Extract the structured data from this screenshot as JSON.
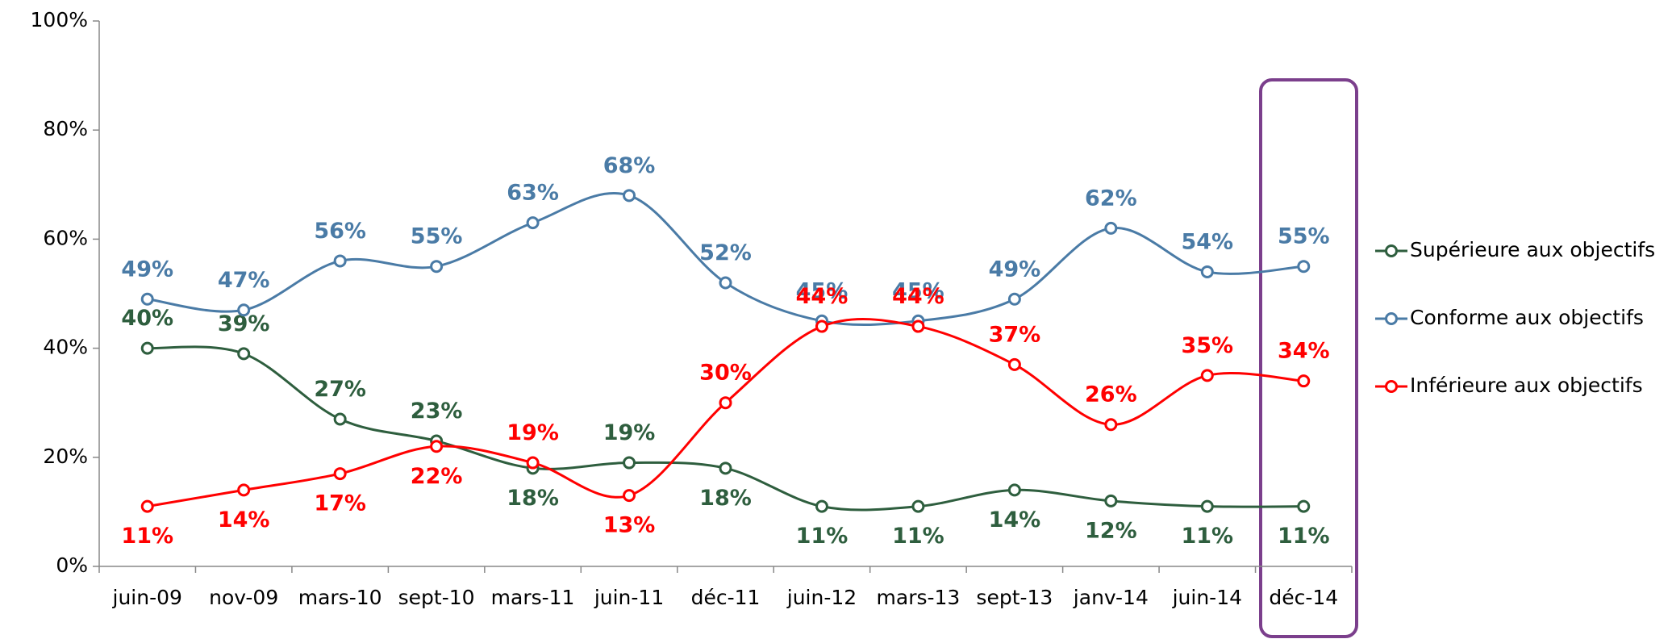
{
  "chart_data": {
    "type": "line",
    "categories": [
      "juin-09",
      "nov-09",
      "mars-10",
      "sept-10",
      "mars-11",
      "juin-11",
      "déc-11",
      "juin-12",
      "mars-13",
      "sept-13",
      "janv-14",
      "juin-14",
      "déc-14"
    ],
    "series": [
      {
        "name": "Supérieure aux objectifs",
        "color": "#2e5e3e",
        "values": [
          40,
          39,
          27,
          23,
          18,
          19,
          18,
          11,
          11,
          14,
          12,
          11,
          11
        ],
        "value_labels": [
          "40%",
          "39%",
          "27%",
          "23%",
          "18%",
          "19%",
          "18%",
          "11%",
          "11%",
          "14%",
          "12%",
          "11%",
          "11%"
        ]
      },
      {
        "name": "Conforme aux objectifs",
        "color": "#4a7ba6",
        "values": [
          49,
          47,
          56,
          55,
          63,
          68,
          52,
          45,
          45,
          49,
          62,
          54,
          55
        ],
        "value_labels": [
          "49%",
          "47%",
          "56%",
          "55%",
          "63%",
          "68%",
          "52%",
          "45%",
          "45%",
          "49%",
          "62%",
          "54%",
          "55%"
        ]
      },
      {
        "name": "Inférieure aux objectifs",
        "color": "#ff0000",
        "values": [
          11,
          14,
          17,
          22,
          19,
          13,
          30,
          44,
          44,
          37,
          26,
          35,
          34
        ],
        "value_labels": [
          "11%",
          "14%",
          "17%",
          "22%",
          "19%",
          "13%",
          "30%",
          "44%",
          "44%",
          "37%",
          "26%",
          "35%",
          "34%"
        ]
      }
    ],
    "ylim": [
      0,
      100
    ],
    "yticks": [
      {
        "value": 0,
        "label": "0%"
      },
      {
        "value": 20,
        "label": "20%"
      },
      {
        "value": 40,
        "label": "40%"
      },
      {
        "value": 60,
        "label": "60%"
      },
      {
        "value": 80,
        "label": "80%"
      },
      {
        "value": 100,
        "label": "100%"
      }
    ],
    "legend": "right",
    "smooth": true
  }
}
